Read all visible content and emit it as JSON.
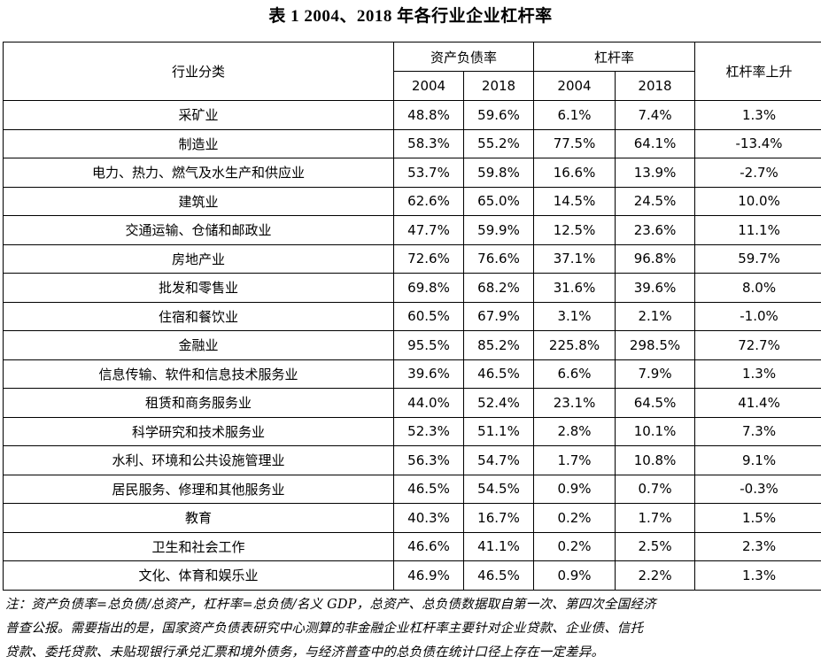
{
  "title": "表 1  2004、2018 年各行业企业杠杆率",
  "headers": {
    "industry": "行业分类",
    "asset_liability_ratio": "资产负债率",
    "leverage_ratio": "杠杆率",
    "leverage_increase": "杠杆率上升",
    "year_a": "2004",
    "year_b": "2018"
  },
  "rows": [
    {
      "industry": "采矿业",
      "alr_2004": "48.8%",
      "alr_2018": "59.6%",
      "lev_2004": "6.1%",
      "lev_2018": "7.4%",
      "increase": "1.3%"
    },
    {
      "industry": "制造业",
      "alr_2004": "58.3%",
      "alr_2018": "55.2%",
      "lev_2004": "77.5%",
      "lev_2018": "64.1%",
      "increase": "-13.4%"
    },
    {
      "industry": "电力、热力、燃气及水生产和供应业",
      "alr_2004": "53.7%",
      "alr_2018": "59.8%",
      "lev_2004": "16.6%",
      "lev_2018": "13.9%",
      "increase": "-2.7%"
    },
    {
      "industry": "建筑业",
      "alr_2004": "62.6%",
      "alr_2018": "65.0%",
      "lev_2004": "14.5%",
      "lev_2018": "24.5%",
      "increase": "10.0%"
    },
    {
      "industry": "交通运输、仓储和邮政业",
      "alr_2004": "47.7%",
      "alr_2018": "59.9%",
      "lev_2004": "12.5%",
      "lev_2018": "23.6%",
      "increase": "11.1%"
    },
    {
      "industry": "房地产业",
      "alr_2004": "72.6%",
      "alr_2018": "76.6%",
      "lev_2004": "37.1%",
      "lev_2018": "96.8%",
      "increase": "59.7%"
    },
    {
      "industry": "批发和零售业",
      "alr_2004": "69.8%",
      "alr_2018": "68.2%",
      "lev_2004": "31.6%",
      "lev_2018": "39.6%",
      "increase": "8.0%"
    },
    {
      "industry": "住宿和餐饮业",
      "alr_2004": "60.5%",
      "alr_2018": "67.9%",
      "lev_2004": "3.1%",
      "lev_2018": "2.1%",
      "increase": "-1.0%"
    },
    {
      "industry": "金融业",
      "alr_2004": "95.5%",
      "alr_2018": "85.2%",
      "lev_2004": "225.8%",
      "lev_2018": "298.5%",
      "increase": "72.7%"
    },
    {
      "industry": "信息传输、软件和信息技术服务业",
      "alr_2004": "39.6%",
      "alr_2018": "46.5%",
      "lev_2004": "6.6%",
      "lev_2018": "7.9%",
      "increase": "1.3%"
    },
    {
      "industry": "租赁和商务服务业",
      "alr_2004": "44.0%",
      "alr_2018": "52.4%",
      "lev_2004": "23.1%",
      "lev_2018": "64.5%",
      "increase": "41.4%"
    },
    {
      "industry": "科学研究和技术服务业",
      "alr_2004": "52.3%",
      "alr_2018": "51.1%",
      "lev_2004": "2.8%",
      "lev_2018": "10.1%",
      "increase": "7.3%"
    },
    {
      "industry": "水利、环境和公共设施管理业",
      "alr_2004": "56.3%",
      "alr_2018": "54.7%",
      "lev_2004": "1.7%",
      "lev_2018": "10.8%",
      "increase": "9.1%"
    },
    {
      "industry": "居民服务、修理和其他服务业",
      "alr_2004": "46.5%",
      "alr_2018": "54.5%",
      "lev_2004": "0.9%",
      "lev_2018": "0.7%",
      "increase": "-0.3%"
    },
    {
      "industry": "教育",
      "alr_2004": "40.3%",
      "alr_2018": "16.7%",
      "lev_2004": "0.2%",
      "lev_2018": "1.7%",
      "increase": "1.5%"
    },
    {
      "industry": "卫生和社会工作",
      "alr_2004": "46.6%",
      "alr_2018": "41.1%",
      "lev_2004": "0.2%",
      "lev_2018": "2.5%",
      "increase": "2.3%"
    },
    {
      "industry": "文化、体育和娱乐业",
      "alr_2004": "46.9%",
      "alr_2018": "46.5%",
      "lev_2004": "0.9%",
      "lev_2018": "2.2%",
      "increase": "1.3%"
    }
  ],
  "note_lines": [
    "注：资产负债率=总负债/总资产，杠杆率=总负债/名义 GDP，总资产、总负债数据取自第一次、第四次全国经济",
    "普查公报。需要指出的是，国家资产负债表研究中心测算的非金融企业杠杆率主要针对企业贷款、企业债、信托",
    "贷款、委托贷款、未贴现银行承兑汇票和境外债务，与经济普查中的总负债在统计口径上存在一定差异。"
  ]
}
